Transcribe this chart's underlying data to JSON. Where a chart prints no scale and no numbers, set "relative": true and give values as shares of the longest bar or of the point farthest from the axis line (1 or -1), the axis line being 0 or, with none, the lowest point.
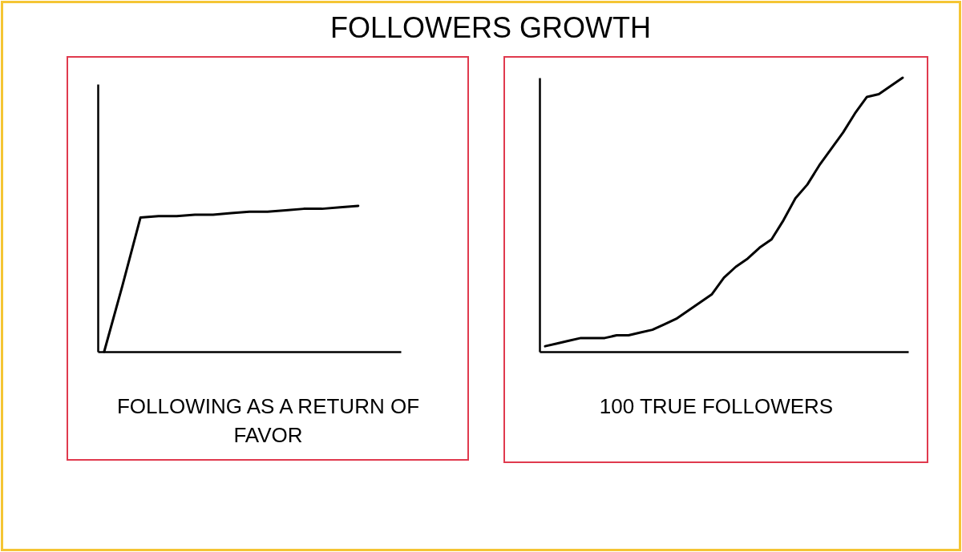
{
  "chart_data": [
    {
      "type": "line",
      "title": "FOLLOWERS GROWTH",
      "xlabel": "FOLLOWING AS A RETURN OF FAVOR",
      "relative": true,
      "tick_labels": false,
      "categories": [
        null,
        null,
        null,
        null,
        null,
        null,
        null,
        null,
        null,
        null,
        null,
        null,
        null,
        null,
        null,
        null,
        null
      ],
      "series": [
        {
          "color": "#000000",
          "values": [
            0,
            0.45,
            0.92,
            0.93,
            0.93,
            0.94,
            0.94,
            0.95,
            0.96,
            0.96,
            0.97,
            0.98,
            0.98,
            0.99,
            1,
            null,
            null
          ]
        }
      ]
    },
    {
      "type": "line",
      "xlabel": "100 TRUE FOLLOWERS",
      "relative": true,
      "tick_labels": false,
      "categories": [
        null,
        null,
        null,
        null,
        null,
        null,
        null,
        null,
        null,
        null,
        null,
        null,
        null,
        null,
        null,
        null,
        null,
        null,
        null,
        null,
        null,
        null,
        null,
        null,
        null,
        null,
        null,
        null,
        null,
        null,
        null
      ],
      "series": [
        {
          "color": "#000000",
          "values": [
            0.02,
            0.03,
            0.04,
            0.05,
            0.05,
            0.05,
            0.06,
            0.06,
            0.07,
            0.08,
            0.1,
            0.12,
            0.15,
            0.18,
            0.21,
            0.27,
            0.31,
            0.34,
            0.38,
            0.41,
            0.48,
            0.56,
            0.61,
            0.68,
            0.74,
            0.8,
            0.87,
            0.93,
            0.94,
            0.97,
            1
          ]
        }
      ]
    }
  ]
}
